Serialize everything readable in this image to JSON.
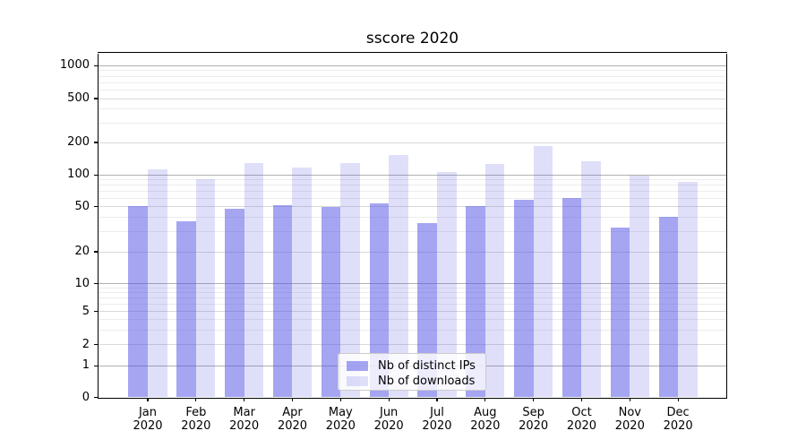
{
  "chart_data": {
    "type": "bar",
    "title": "sscore 2020",
    "months": [
      "Jan",
      "Feb",
      "Mar",
      "Apr",
      "May",
      "Jun",
      "Jul",
      "Aug",
      "Sep",
      "Oct",
      "Nov",
      "Dec"
    ],
    "year_label": "2020",
    "series": [
      {
        "name": "Nb of distinct IPs",
        "color_hex": "#4b4be6",
        "fill": "rgba(75,75,230,0.5)",
        "values": [
          51,
          37,
          48,
          52,
          50,
          54,
          36,
          51,
          58,
          61,
          33,
          41
        ]
      },
      {
        "name": "Nb of downloads",
        "color_hex": "#4b4be6",
        "fill": "rgba(75,75,230,0.18)",
        "values": [
          112,
          92,
          129,
          117,
          130,
          152,
          107,
          126,
          187,
          134,
          98,
          86
        ]
      }
    ],
    "y_axis": {
      "scale": "symlog",
      "ticks": [
        0,
        1,
        2,
        5,
        10,
        20,
        50,
        100,
        200,
        500,
        1000
      ],
      "ylim": [
        0,
        1300
      ],
      "grid": "on"
    },
    "x_axis": {
      "ticks_per_month": true,
      "label_format": "Mon YYYY"
    },
    "legend": {
      "position": "lower center"
    }
  }
}
